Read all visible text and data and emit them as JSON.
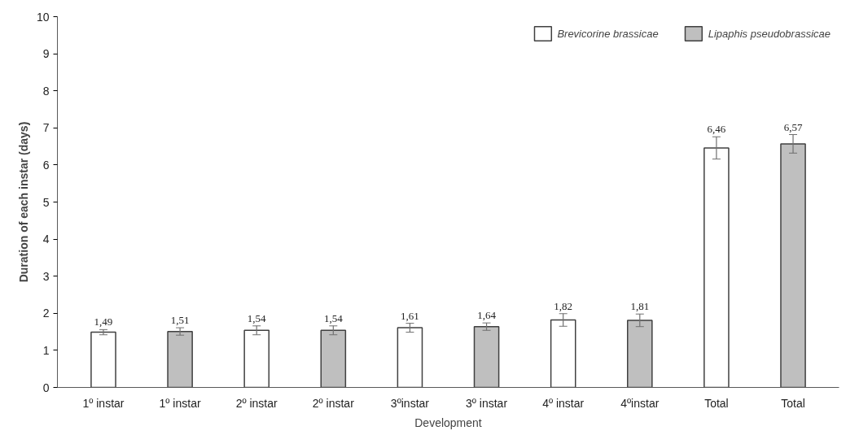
{
  "chart_data": {
    "type": "bar",
    "xlabel": "Development",
    "ylabel": "Duration of each instar (days)",
    "categories": [
      "1º instar",
      "1º instar",
      "2º instar",
      "2º instar",
      "3ºinstar",
      "3º instar",
      "4º instar",
      "4ºinstar",
      "Total",
      "Total"
    ],
    "series": [
      {
        "name": "Brevicorine brassicae",
        "color": "#ffffff",
        "values": [
          1.49,
          null,
          1.54,
          null,
          1.61,
          null,
          1.82,
          null,
          6.46,
          null
        ],
        "errors": [
          0.07,
          null,
          0.12,
          null,
          0.12,
          null,
          0.17,
          null,
          0.3,
          null
        ],
        "value_labels": [
          "1,49",
          null,
          "1,54",
          null,
          "1,61",
          null,
          "1,82",
          null,
          "6,46",
          null
        ]
      },
      {
        "name": "Lipaphis pseudobrassicae",
        "color": "#bfbfbf",
        "values": [
          null,
          1.51,
          null,
          1.54,
          null,
          1.64,
          null,
          1.81,
          null,
          6.57
        ],
        "errors": [
          null,
          0.1,
          null,
          0.12,
          null,
          0.1,
          null,
          0.17,
          null,
          0.25
        ],
        "value_labels": [
          null,
          "1,51",
          null,
          "1,54",
          null,
          "1,64",
          null,
          "1,81",
          null,
          "6,57"
        ]
      }
    ],
    "ylim": [
      0,
      10
    ],
    "yticks": [
      0,
      1,
      2,
      3,
      4,
      5,
      6,
      7,
      8,
      9,
      10
    ],
    "grid": false,
    "legend": "top right"
  }
}
